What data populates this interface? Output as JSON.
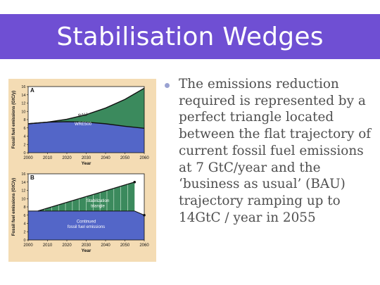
{
  "title": "Stabilisation Wedges",
  "bullet": {
    "text": "The emissions reduction required is represented by a perfect triangle located between the flat trajectory of current fossil fuel emissions at 7 GtC/year and the ‘business as usual’ (BAU) trajectory ramping up to 14GtC / year in 2055"
  },
  "colors": {
    "title_bg": "#6f4fd3",
    "panel_bg": "#f4dcb4",
    "wedge_green": "#3b8a5d",
    "blue_area": "#5366c8",
    "bullet": "#9aa2d2"
  },
  "chart_data": [
    {
      "type": "area",
      "panel_label": "A",
      "ylabel": "Fossil fuel emissions (GtC/y)",
      "xlabel": "Year",
      "x_ticks": [
        "2000",
        "2010",
        "2020",
        "2030",
        "2040",
        "2050",
        "2060"
      ],
      "y_ticks": [
        "0",
        "2",
        "4",
        "6",
        "8",
        "10",
        "12",
        "14",
        "16"
      ],
      "xlim": [
        2000,
        2060
      ],
      "ylim": [
        0,
        16
      ],
      "series": [
        {
          "name": "BAU",
          "x": [
            2000,
            2010,
            2020,
            2030,
            2040,
            2050,
            2060
          ],
          "values": [
            7,
            7.4,
            8.1,
            9.2,
            10.8,
            12.9,
            15.6
          ]
        },
        {
          "name": "WRE500",
          "x": [
            2000,
            2010,
            2020,
            2030,
            2040,
            2050,
            2060
          ],
          "values": [
            7,
            7.4,
            7.5,
            7.4,
            7.0,
            6.4,
            5.9
          ]
        }
      ]
    },
    {
      "type": "area",
      "panel_label": "B",
      "ylabel": "Fossil fuel emissions (GtC/y)",
      "xlabel": "Year",
      "x_ticks": [
        "2000",
        "2010",
        "2020",
        "2030",
        "2040",
        "2050",
        "2060"
      ],
      "y_ticks": [
        "0",
        "2",
        "4",
        "6",
        "8",
        "10",
        "12",
        "14",
        "16"
      ],
      "xlim": [
        2000,
        2060
      ],
      "ylim": [
        0,
        16
      ],
      "annotations": [
        "Stabilization triangle",
        "Continued fossil fuel emissions"
      ],
      "series": [
        {
          "name": "",
          "x": [
            2005,
            2055
          ],
          "values": [
            7,
            14
          ]
        },
        {
          "name": "",
          "x": [
            2005,
            2055
          ],
          "values": [
            7,
            7
          ]
        }
      ]
    }
  ]
}
